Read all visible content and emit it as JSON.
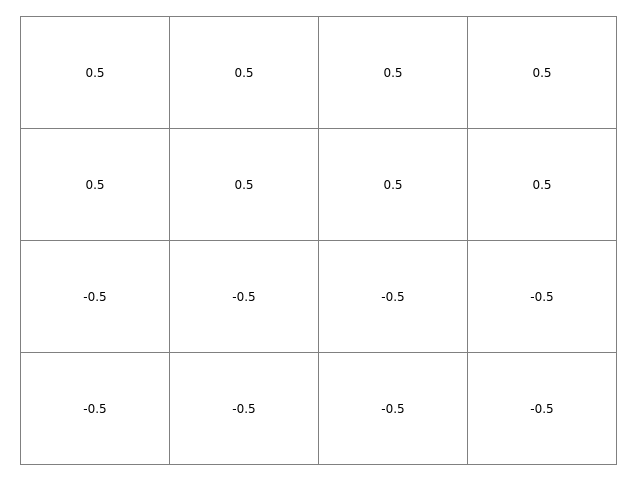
{
  "chart_data": {
    "type": "table",
    "rows": [
      [
        "0.5",
        "0.5",
        "0.5",
        "0.5"
      ],
      [
        "0.5",
        "0.5",
        "0.5",
        "0.5"
      ],
      [
        "-0.5",
        "-0.5",
        "-0.5",
        "-0.5"
      ],
      [
        "-0.5",
        "-0.5",
        "-0.5",
        "-0.5"
      ]
    ],
    "grid": true
  },
  "colors": {
    "border": "#808080",
    "text": "#000000",
    "background": "#ffffff"
  }
}
